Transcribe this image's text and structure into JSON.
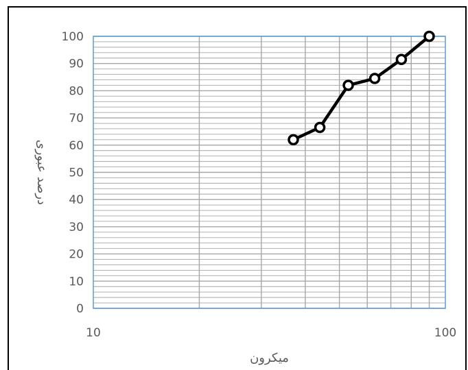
{
  "chart_data": {
    "type": "line",
    "title": "",
    "xlabel": "میکرون",
    "ylabel": "درصد عبوری",
    "x_scale": "log",
    "xlim": [
      10,
      100
    ],
    "ylim": [
      0,
      100
    ],
    "x_ticks": [
      "10",
      "100"
    ],
    "y_ticks": [
      "0",
      "10",
      "20",
      "30",
      "40",
      "50",
      "60",
      "70",
      "80",
      "90",
      "100"
    ],
    "grid": true,
    "legend": "none",
    "series": [
      {
        "x": [
          37,
          44,
          53,
          63,
          75,
          90
        ],
        "y": [
          62,
          66.5,
          82,
          84.5,
          91.5,
          100
        ]
      }
    ],
    "colors": {
      "line": "#000000",
      "marker_fill": "#ffffff",
      "grid": "#a6a6a6",
      "plot_border": "#5b9bd5",
      "text": "#595959"
    }
  }
}
